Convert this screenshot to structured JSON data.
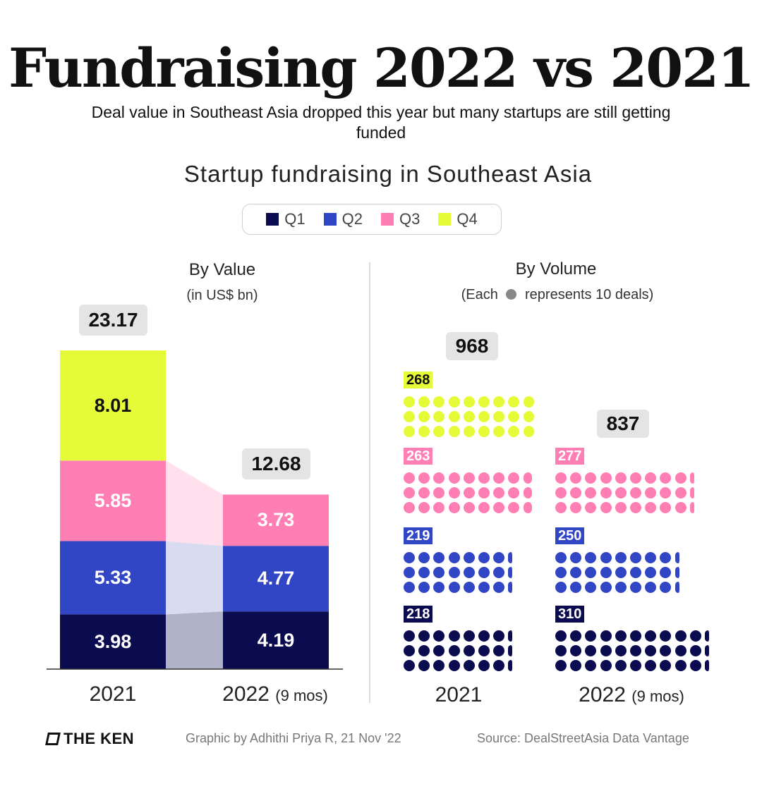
{
  "header": {
    "title": "Fundraising 2022 vs 2021",
    "subtitle": "Deal value in Southeast Asia dropped this year but many startups are still getting funded",
    "chart_title": "Startup fundraising in Southeast Asia"
  },
  "legend": [
    {
      "label": "Q1",
      "color": "#0b0b4f"
    },
    {
      "label": "Q2",
      "color": "#3146c4"
    },
    {
      "label": "Q3",
      "color": "#ff7eb4"
    },
    {
      "label": "Q4",
      "color": "#e6fb37"
    }
  ],
  "value_section": {
    "title": "By Value",
    "subtitle": "(in US$ bn)"
  },
  "volume_section": {
    "title": "By Volume",
    "subtitle_pre": "(Each",
    "subtitle_post": "represents 10 deals)",
    "dot_symbol_color": "#888888"
  },
  "years": [
    {
      "label": "2021",
      "note": ""
    },
    {
      "label": "2022",
      "note": "(9 mos)"
    }
  ],
  "footer": {
    "logo": "THE KEN",
    "credit": "Graphic by Adhithi Priya R, 21 Nov '22",
    "source": "Source: DealStreetAsia Data Vantage"
  },
  "chart_data": [
    {
      "type": "bar",
      "subtype": "stacked",
      "title": "By Value",
      "ylabel": "(in US$ bn)",
      "categories": [
        "2021",
        "2022 (9 mos)"
      ],
      "totals": [
        "23.17",
        "12.68"
      ],
      "series": [
        {
          "name": "Q1",
          "color": "#0b0b4f",
          "values": [
            3.98,
            4.19
          ],
          "labels": [
            "3.98",
            "4.19"
          ]
        },
        {
          "name": "Q2",
          "color": "#3146c4",
          "values": [
            5.33,
            4.77
          ],
          "labels": [
            "5.33",
            "4.77"
          ]
        },
        {
          "name": "Q3",
          "color": "#ff7eb4",
          "values": [
            5.85,
            3.73
          ],
          "labels": [
            "5.85",
            "3.73"
          ]
        },
        {
          "name": "Q4",
          "color": "#e6fb37",
          "values": [
            8.01,
            null
          ],
          "labels": [
            "8.01",
            ""
          ]
        }
      ]
    },
    {
      "type": "dot-matrix",
      "title": "By Volume",
      "unit": "Each dot represents 10 deals",
      "categories": [
        "2021",
        "2022 (9 mos)"
      ],
      "totals": [
        968,
        837
      ],
      "series": [
        {
          "name": "Q1",
          "color": "#0b0b4f",
          "values": [
            218,
            310
          ]
        },
        {
          "name": "Q2",
          "color": "#3146c4",
          "values": [
            219,
            250
          ]
        },
        {
          "name": "Q3",
          "color": "#ff7eb4",
          "values": [
            263,
            277
          ]
        },
        {
          "name": "Q4",
          "color": "#e6fb37",
          "values": [
            268,
            null
          ]
        }
      ]
    }
  ]
}
